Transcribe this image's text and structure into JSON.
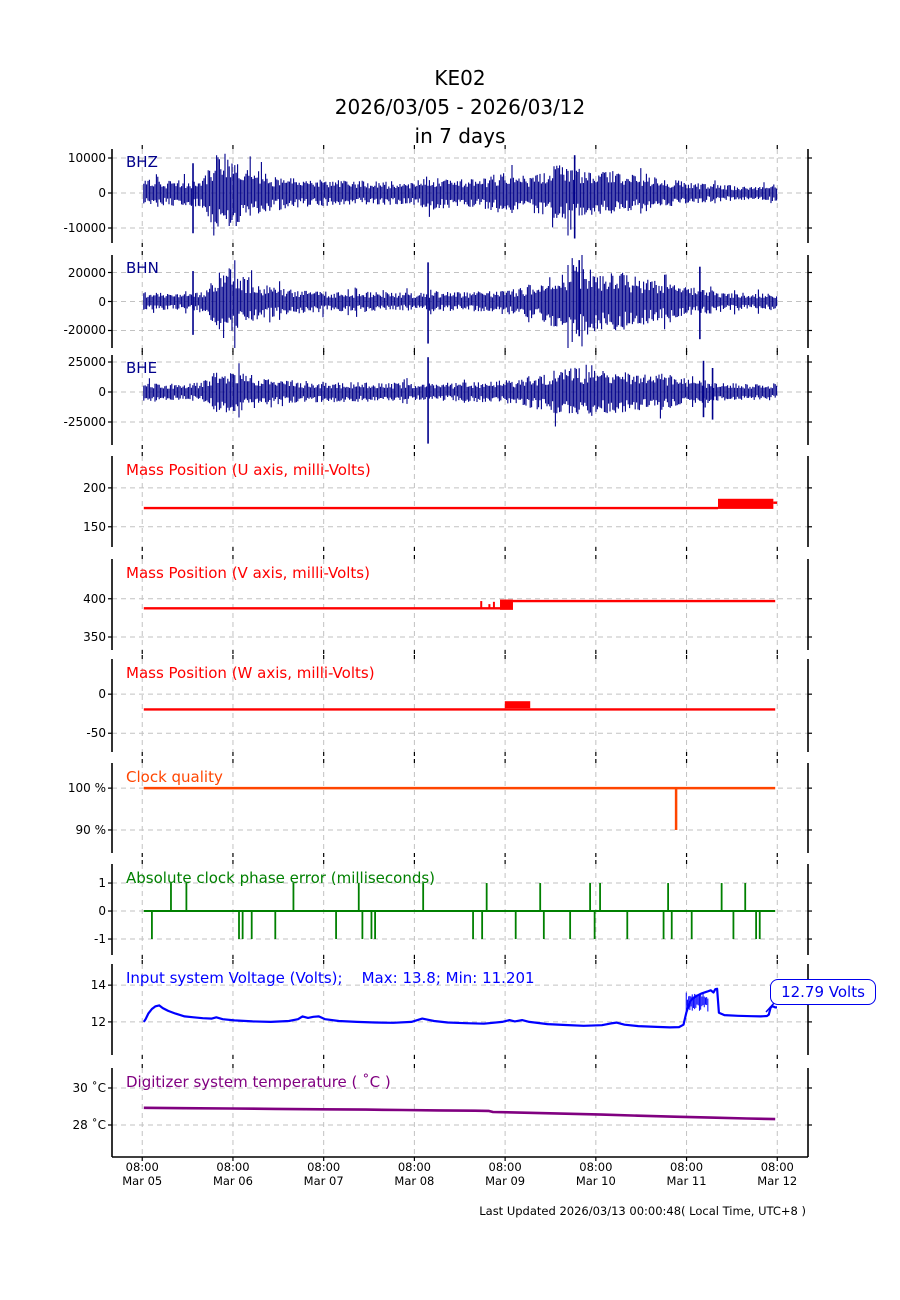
{
  "title": {
    "line1": "KE02",
    "line2": "2026/03/05 - 2026/03/12",
    "line3": "in 7 days"
  },
  "footer": "Last Updated 2026/03/13 00:00:48( Local Time, UTC+8 )",
  "colors": {
    "waveform": "#00008B",
    "mass": "#FF0000",
    "clock": "#FF4500",
    "phase": "#008000",
    "voltage": "#0000FF",
    "temperature": "#800080",
    "grid": "#c2c2c2",
    "axis": "#000000"
  },
  "chart_data": {
    "type": "multi-panel time series (seismic station state-of-health)",
    "x_axis": {
      "unit": "days since 2026/03/05 00:00 local",
      "tick_t": [
        0.3333,
        1.3333,
        2.3333,
        3.3333,
        4.3333,
        5.3333,
        6.3333,
        7.3333
      ],
      "tick_labels": [
        {
          "time": "08:00",
          "date": "Mar 05"
        },
        {
          "time": "08:00",
          "date": "Mar 06"
        },
        {
          "time": "08:00",
          "date": "Mar 07"
        },
        {
          "time": "08:00",
          "date": "Mar 08"
        },
        {
          "time": "08:00",
          "date": "Mar 09"
        },
        {
          "time": "08:00",
          "date": "Mar 10"
        },
        {
          "time": "08:00",
          "date": "Mar 11"
        },
        {
          "time": "08:00",
          "date": "Mar 12"
        }
      ]
    },
    "subplots": [
      {
        "id": "bhz",
        "kind": "waveform",
        "label": "BHZ",
        "color": "#00008B",
        "yticks": [
          {
            "v": 10000,
            "label": "10000"
          },
          {
            "v": 0,
            "label": "0"
          },
          {
            "v": -10000,
            "label": "-10000"
          }
        ],
        "envelope": {
          "t": [
            0.35,
            0.6,
            0.85,
            1.0,
            1.05,
            1.1,
            1.18,
            1.25,
            1.32,
            1.42,
            1.55,
            1.7,
            1.9,
            2.1,
            2.4,
            2.7,
            3.0,
            3.3,
            3.5,
            3.65,
            3.9,
            4.1,
            4.3,
            4.45,
            4.6,
            4.75,
            4.9,
            5.05,
            5.2,
            5.35,
            5.5,
            5.65,
            5.8,
            6.0,
            6.2,
            6.4,
            6.6,
            6.8,
            7.0,
            7.15,
            7.33
          ],
          "amp": [
            3000,
            2900,
            2800,
            3300,
            4800,
            7200,
            10200,
            9500,
            8200,
            6500,
            5200,
            4300,
            3600,
            3100,
            2800,
            2900,
            2600,
            2700,
            3800,
            3400,
            3000,
            3400,
            4600,
            4100,
            3600,
            5200,
            6300,
            6000,
            5200,
            4600,
            4900,
            4300,
            3900,
            3400,
            2900,
            2400,
            2000,
            1800,
            1600,
            1700,
            2000
          ]
        },
        "spikes": [
          {
            "t": 0.893,
            "hi": 8500,
            "lo": -11500
          },
          {
            "t": 5.1,
            "hi": 10800,
            "lo": -13000
          }
        ]
      },
      {
        "id": "bhn",
        "kind": "waveform",
        "label": "BHN",
        "color": "#00008B",
        "yticks": [
          {
            "v": 20000,
            "label": "20000"
          },
          {
            "v": 0,
            "label": "0"
          },
          {
            "v": -20000,
            "label": "-20000"
          }
        ],
        "envelope": {
          "t": [
            0.35,
            0.6,
            0.85,
            1.0,
            1.05,
            1.12,
            1.2,
            1.28,
            1.38,
            1.5,
            1.65,
            1.8,
            2.0,
            2.2,
            2.5,
            2.8,
            3.1,
            3.4,
            3.6,
            3.9,
            4.1,
            4.3,
            4.5,
            4.7,
            4.85,
            5.0,
            5.1,
            5.25,
            5.4,
            5.55,
            5.7,
            5.85,
            6.0,
            6.2,
            6.4,
            6.6,
            6.8,
            7.0,
            7.15,
            7.33
          ],
          "amp": [
            5000,
            4600,
            4300,
            5500,
            8000,
            13000,
            19000,
            21000,
            16000,
            12000,
            9500,
            7800,
            6500,
            5800,
            5400,
            5800,
            5000,
            4800,
            5200,
            5000,
            5500,
            6800,
            7500,
            10000,
            13500,
            17000,
            20000,
            17500,
            15500,
            16500,
            14000,
            12500,
            11000,
            9000,
            7500,
            6200,
            5200,
            4600,
            4400,
            5000
          ]
        },
        "spikes": [
          {
            "t": 0.893,
            "hi": 21000,
            "lo": -23000
          },
          {
            "t": 3.484,
            "hi": 27000,
            "lo": -29000
          },
          {
            "t": 5.15,
            "hi": 28500,
            "lo": -24000
          },
          {
            "t": 6.48,
            "hi": 24000,
            "lo": -26000
          }
        ]
      },
      {
        "id": "bhe",
        "kind": "waveform",
        "label": "BHE",
        "color": "#00008B",
        "yticks": [
          {
            "v": 25000,
            "label": "25000"
          },
          {
            "v": 0,
            "label": "0"
          },
          {
            "v": -25000,
            "label": "-25000"
          }
        ],
        "envelope": {
          "t": [
            0.35,
            0.6,
            0.85,
            1.0,
            1.08,
            1.15,
            1.25,
            1.35,
            1.5,
            1.65,
            1.85,
            2.1,
            2.4,
            2.7,
            3.0,
            3.3,
            3.6,
            3.9,
            4.2,
            4.45,
            4.7,
            4.9,
            5.1,
            5.3,
            5.5,
            5.7,
            5.9,
            6.1,
            6.3,
            6.5,
            6.7,
            6.9,
            7.1,
            7.33
          ],
          "amp": [
            6000,
            5600,
            5300,
            7000,
            10500,
            14000,
            15500,
            13500,
            11500,
            9800,
            8300,
            7200,
            6600,
            6300,
            6000,
            5800,
            6000,
            6200,
            7000,
            8200,
            11500,
            14500,
            16000,
            13500,
            14500,
            12500,
            11000,
            12000,
            9000,
            7500,
            6500,
            5500,
            5000,
            5600
          ]
        },
        "spikes": [
          {
            "t": 3.484,
            "hi": 29000,
            "lo": -43000
          },
          {
            "t": 6.52,
            "hi": 26000,
            "lo": -21000
          },
          {
            "t": 6.62,
            "hi": 20000,
            "lo": -23000
          }
        ]
      },
      {
        "id": "mass-u",
        "kind": "line",
        "label": "Mass Position (U axis, milli-Volts)",
        "color": "#FF0000",
        "yticks": [
          {
            "v": 200,
            "label": "200"
          },
          {
            "v": 150,
            "label": "150"
          }
        ],
        "series": {
          "t": [
            0.35,
            6.68
          ],
          "v": [
            174,
            174
          ]
        },
        "segments": [
          {
            "t": [
              7.29,
              7.33
            ],
            "v": [
              181,
              181
            ]
          }
        ],
        "bands": [
          {
            "t0": 6.68,
            "t1": 7.29,
            "lo": 173,
            "hi": 186
          }
        ]
      },
      {
        "id": "mass-v",
        "kind": "line",
        "label": "Mass Position (V axis, milli-Volts)",
        "color": "#FF0000",
        "yticks": [
          {
            "v": 400,
            "label": "400"
          },
          {
            "v": 350,
            "label": "350"
          }
        ],
        "series": {
          "t": [
            0.35,
            4.33
          ],
          "v": [
            387.5,
            387.5
          ]
        },
        "segments": [
          {
            "t": [
              4.42,
              7.31
            ],
            "v": [
              397,
              397
            ]
          }
        ],
        "vspikes": [
          {
            "t": 4.07,
            "v0": 387.5,
            "v1": 397
          },
          {
            "t": 4.16,
            "v0": 387.5,
            "v1": 393
          },
          {
            "t": 4.21,
            "v0": 387.5,
            "v1": 396
          }
        ],
        "bands": [
          {
            "t0": 4.277,
            "t1": 4.42,
            "lo": 385.5,
            "hi": 399
          }
        ]
      },
      {
        "id": "mass-w",
        "kind": "line",
        "label": "Mass Position (W axis, milli-Volts)",
        "color": "#FF0000",
        "yticks": [
          {
            "v": 0,
            "label": "0"
          },
          {
            "v": -50,
            "label": "-50"
          }
        ],
        "series": {
          "t": [
            0.35,
            7.31
          ],
          "v": [
            -19.5,
            -19.5
          ]
        },
        "bands": [
          {
            "t0": 4.33,
            "t1": 4.61,
            "lo": -18,
            "hi": -9
          }
        ]
      },
      {
        "id": "clock-quality",
        "kind": "line",
        "label": "Clock quality",
        "color": "#FF4500",
        "yticks": [
          {
            "v": 100,
            "label": "100 %"
          },
          {
            "v": 90,
            "label": "90 %"
          }
        ],
        "series": {
          "t": [
            0.35,
            7.31
          ],
          "v": [
            100,
            100
          ]
        },
        "vspikes": [
          {
            "t": 6.218,
            "v0": 100,
            "v1": 90,
            "w": 2.5
          }
        ]
      },
      {
        "id": "clock-phase-error",
        "kind": "phase",
        "label": "Absolute clock phase error (milliseconds)",
        "color": "#008000",
        "yticks": [
          {
            "v": 1,
            "label": "1"
          },
          {
            "v": 0,
            "label": "0"
          },
          {
            "v": -1,
            "label": "-1"
          }
        ],
        "series": {
          "t": [
            0.35,
            7.31
          ],
          "v": [
            0,
            0
          ]
        },
        "events": [
          {
            "t": 0.44,
            "v": -1
          },
          {
            "t": 0.65,
            "v": 1
          },
          {
            "t": 0.82,
            "v": 1
          },
          {
            "t": 1.4,
            "v": -1
          },
          {
            "t": 1.44,
            "v": -1
          },
          {
            "t": 1.54,
            "v": -1
          },
          {
            "t": 1.8,
            "v": -1
          },
          {
            "t": 2.0,
            "v": 1
          },
          {
            "t": 2.47,
            "v": -1
          },
          {
            "t": 2.72,
            "v": 1
          },
          {
            "t": 2.76,
            "v": -1
          },
          {
            "t": 2.86,
            "v": -1
          },
          {
            "t": 2.9,
            "v": -1
          },
          {
            "t": 3.43,
            "v": 1
          },
          {
            "t": 3.98,
            "v": -1
          },
          {
            "t": 4.08,
            "v": -1
          },
          {
            "t": 4.13,
            "v": 1
          },
          {
            "t": 4.45,
            "v": -1
          },
          {
            "t": 4.72,
            "v": 1
          },
          {
            "t": 4.76,
            "v": -1
          },
          {
            "t": 5.05,
            "v": -1
          },
          {
            "t": 5.27,
            "v": 1
          },
          {
            "t": 5.32,
            "v": -1
          },
          {
            "t": 5.38,
            "v": 1
          },
          {
            "t": 5.68,
            "v": -1
          },
          {
            "t": 6.08,
            "v": -1
          },
          {
            "t": 6.13,
            "v": 1
          },
          {
            "t": 6.17,
            "v": -1
          },
          {
            "t": 6.39,
            "v": -1
          },
          {
            "t": 6.72,
            "v": 1
          },
          {
            "t": 6.85,
            "v": -1
          },
          {
            "t": 6.98,
            "v": 1
          },
          {
            "t": 7.1,
            "v": -1
          },
          {
            "t": 7.14,
            "v": -1
          }
        ]
      },
      {
        "id": "voltage",
        "kind": "line",
        "label": "Input system Voltage (Volts);    Max: 13.8; Min: 11.201",
        "color": "#0000FF",
        "yticks": [
          {
            "v": 14,
            "label": "14"
          },
          {
            "v": 12,
            "label": "12"
          }
        ],
        "series": {
          "t": [
            0.35,
            0.37,
            0.4,
            0.44,
            0.48,
            0.52,
            0.56,
            0.62,
            0.7,
            0.8,
            0.9,
            1.0,
            1.1,
            1.15,
            1.22,
            1.35,
            1.55,
            1.75,
            1.95,
            2.05,
            2.1,
            2.16,
            2.22,
            2.28,
            2.35,
            2.5,
            2.7,
            2.9,
            3.1,
            3.3,
            3.42,
            3.48,
            3.55,
            3.7,
            3.9,
            4.1,
            4.3,
            4.38,
            4.44,
            4.52,
            4.6,
            4.8,
            5.0,
            5.2,
            5.4,
            5.5,
            5.56,
            5.65,
            5.8,
            6.0,
            6.15,
            6.25,
            6.3,
            6.33,
            6.37,
            6.42,
            6.5,
            6.56,
            6.6,
            6.63,
            6.65,
            6.67,
            6.69,
            6.75,
            6.9,
            7.05,
            7.15,
            7.22,
            7.24,
            7.26,
            7.28,
            7.31,
            7.33
          ],
          "v": [
            12.0,
            12.15,
            12.45,
            12.7,
            12.85,
            12.9,
            12.75,
            12.6,
            12.45,
            12.3,
            12.25,
            12.2,
            12.18,
            12.25,
            12.15,
            12.08,
            12.03,
            12.0,
            12.05,
            12.15,
            12.3,
            12.22,
            12.28,
            12.3,
            12.15,
            12.05,
            12.0,
            11.97,
            11.95,
            12.0,
            12.18,
            12.12,
            12.05,
            11.97,
            11.93,
            11.9,
            12.0,
            12.1,
            12.03,
            12.1,
            12.0,
            11.88,
            11.83,
            11.79,
            11.82,
            11.92,
            11.96,
            11.85,
            11.77,
            11.73,
            11.7,
            11.72,
            11.85,
            12.5,
            13.1,
            13.35,
            13.55,
            13.65,
            13.72,
            13.6,
            13.78,
            13.8,
            12.5,
            12.37,
            12.33,
            12.31,
            12.3,
            12.32,
            12.4,
            12.78,
            12.86,
            12.79,
            12.79
          ]
        },
        "noise": {
          "t0": 6.33,
          "t1": 6.58,
          "lo": 12.55,
          "hi": 13.6
        },
        "annotation": "12.79 Volts",
        "stats": {
          "max": 13.8,
          "min": 11.201,
          "last": 12.79
        }
      },
      {
        "id": "temperature",
        "kind": "line",
        "label": "Digitizer system temperature ( ˚C )",
        "color": "#800080",
        "yticks": [
          {
            "v": 30,
            "label": "30 ˚C"
          },
          {
            "v": 28,
            "label": "28 ˚C"
          }
        ],
        "series": {
          "t": [
            0.35,
            0.8,
            1.3,
            1.8,
            2.3,
            2.8,
            3.2,
            3.6,
            4.0,
            4.15,
            4.2,
            4.6,
            5.0,
            5.4,
            5.8,
            6.2,
            6.6,
            7.0,
            7.31
          ],
          "v": [
            28.93,
            28.91,
            28.89,
            28.87,
            28.85,
            28.83,
            28.81,
            28.79,
            28.77,
            28.76,
            28.7,
            28.66,
            28.61,
            28.56,
            28.5,
            28.45,
            28.4,
            28.35,
            28.32
          ]
        }
      }
    ]
  }
}
